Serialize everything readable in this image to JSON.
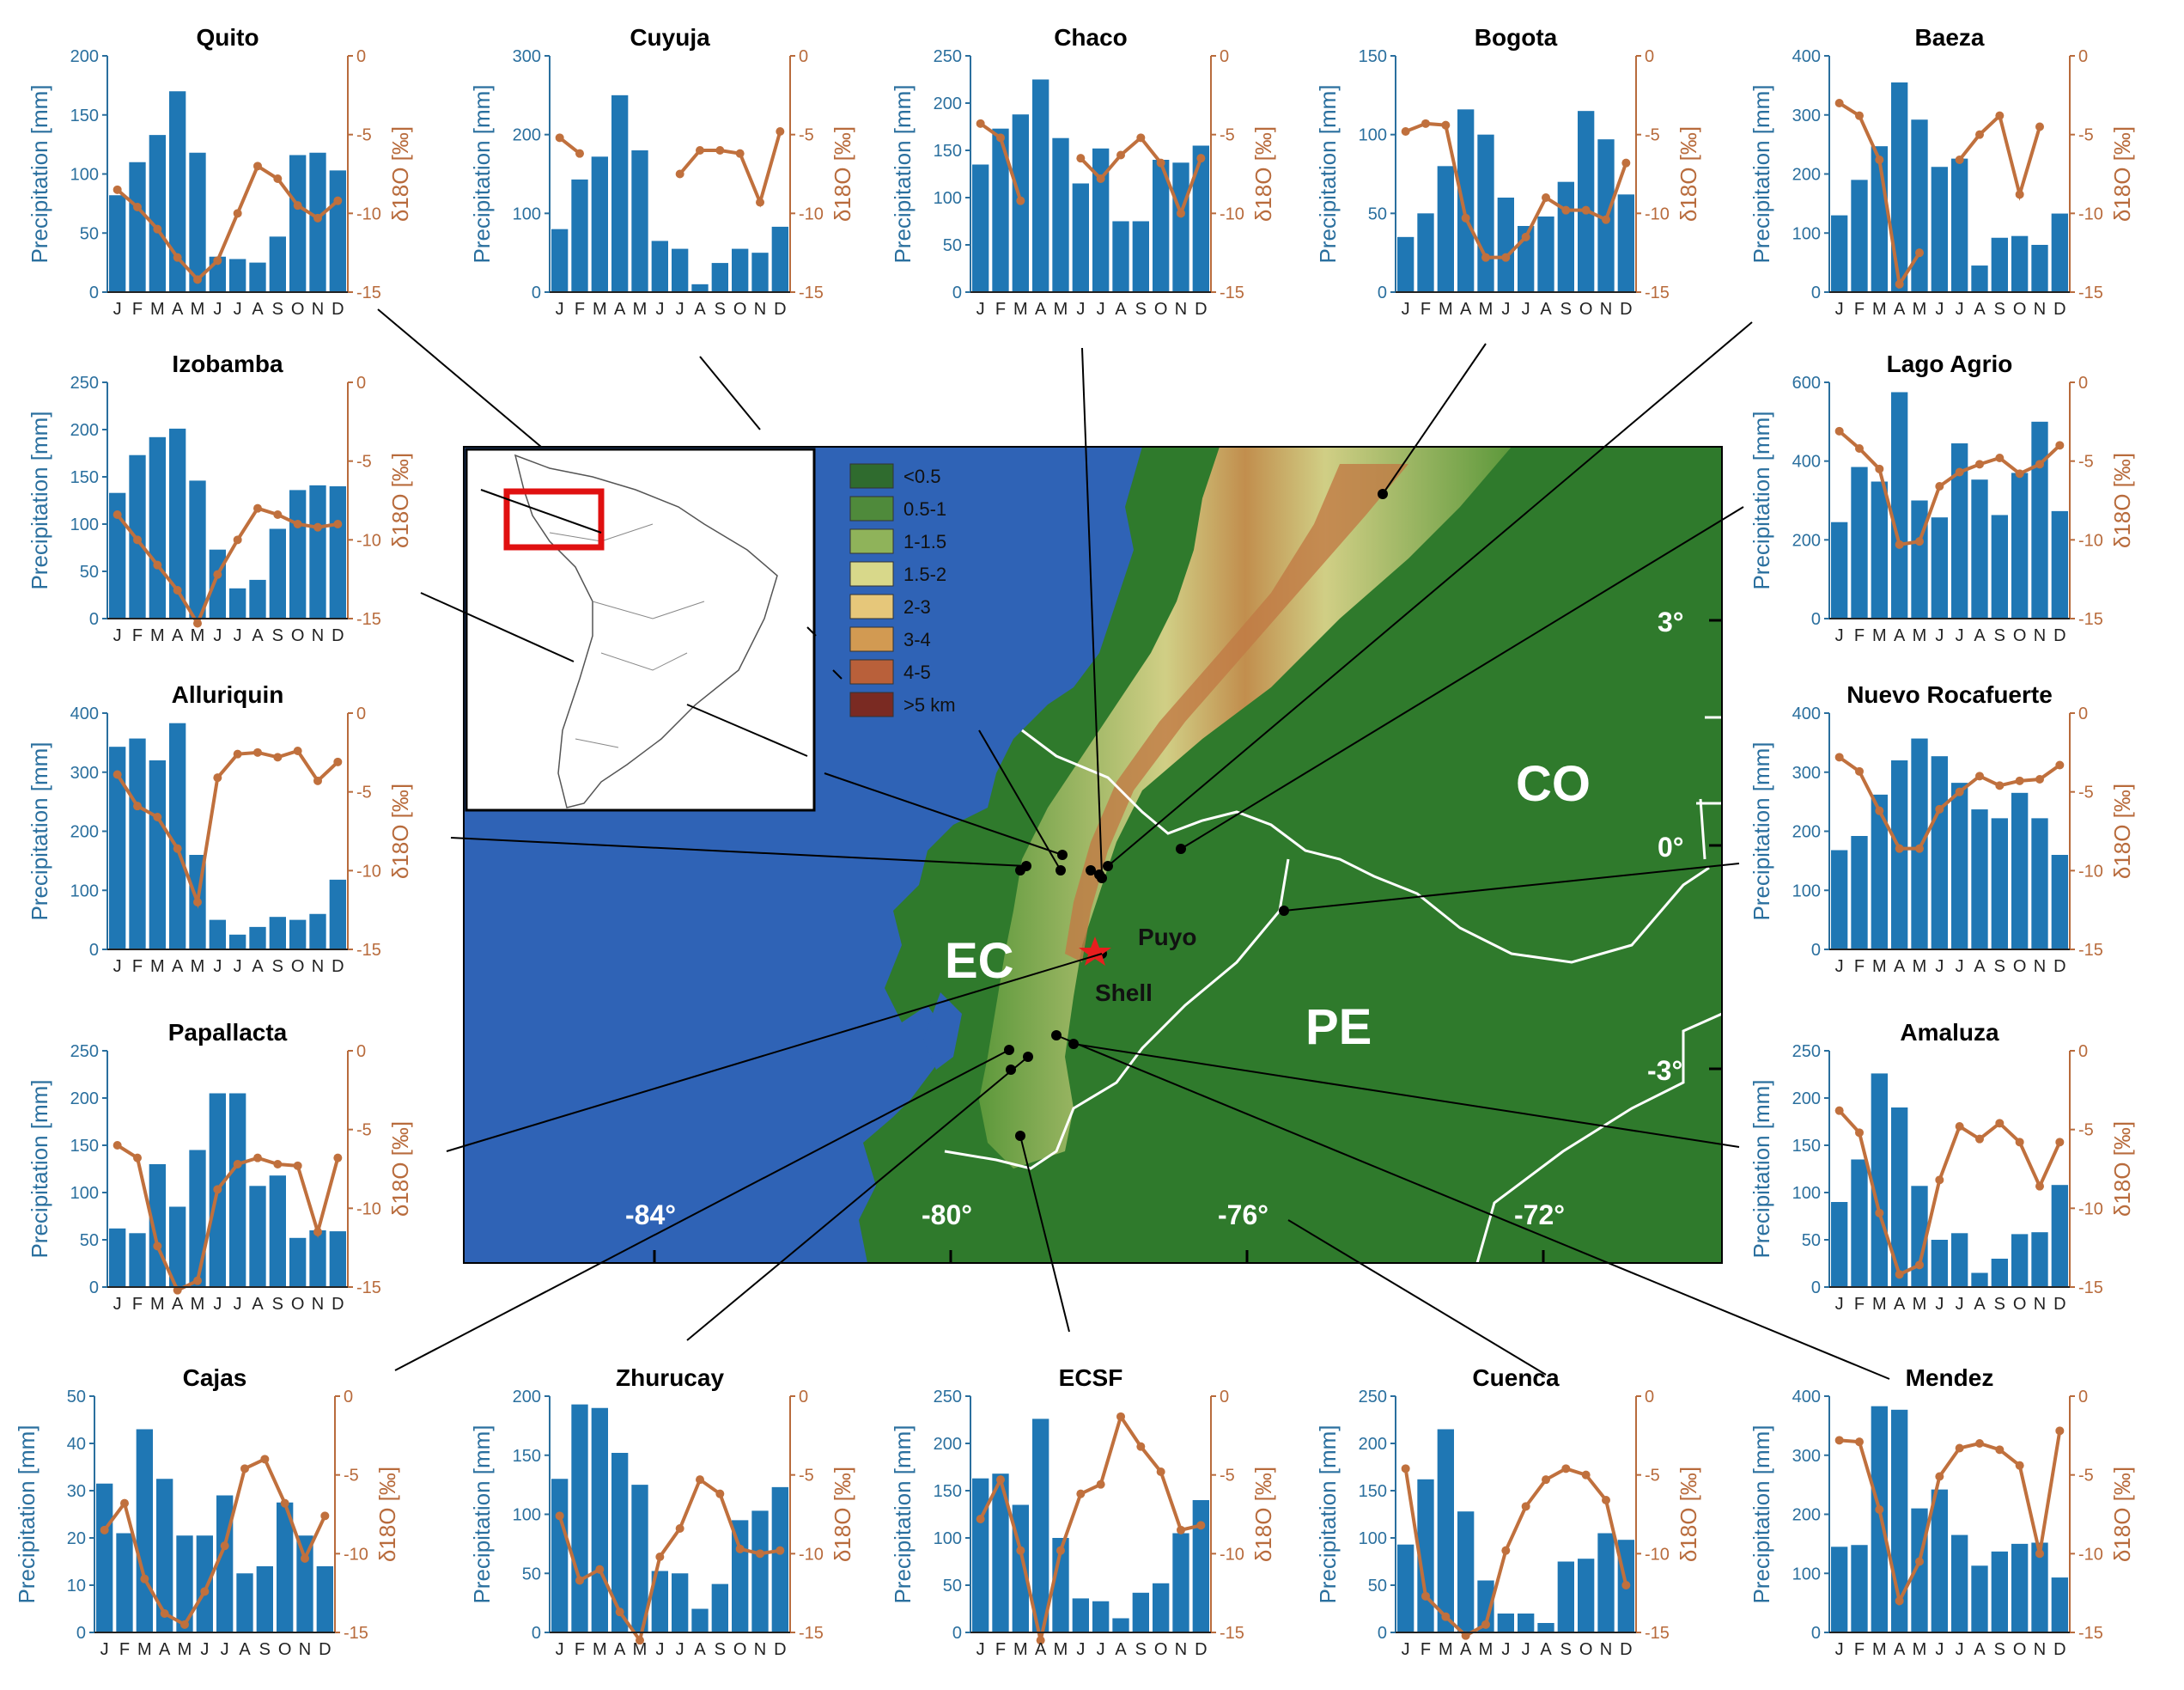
{
  "months": [
    "J",
    "F",
    "M",
    "A",
    "M",
    "J",
    "J",
    "A",
    "S",
    "O",
    "N",
    "D"
  ],
  "axis_labels": {
    "left": "Precipitation [mm]",
    "right": "δ18O [‰]"
  },
  "colors": {
    "bar": "#1f77b4",
    "line": "#c0703d",
    "ocean": "#2f63b6",
    "land_low": "#2d7a2a"
  },
  "map": {
    "country_labels": [
      "EC",
      "PE",
      "CO"
    ],
    "city_labels": [
      "Puyo",
      "Shell"
    ],
    "lon_ticks": [
      "-84°",
      "-80°",
      "-76°",
      "-72°"
    ],
    "lat_ticks": [
      "3°",
      "0°",
      "-3°"
    ],
    "legend": [
      "<0.5",
      "0.5-1",
      "1-1.5",
      "1.5-2",
      "2-3",
      "3-4",
      "4-5",
      ">5 km"
    ],
    "legend_colors": [
      "#2f6b2e",
      "#4f8a3b",
      "#8fb35a",
      "#d8d88a",
      "#e6c77a",
      "#d29a52",
      "#b9603a",
      "#7a2a22"
    ]
  },
  "chart_data": [
    {
      "type": "bar+line",
      "title": "Quito",
      "ylim": [
        0,
        200
      ],
      "yticks": [
        0,
        50,
        100,
        150,
        200
      ],
      "d18O_ticks": [
        0,
        -5,
        -10,
        -15
      ],
      "precip": [
        82,
        110,
        133,
        170,
        118,
        30,
        28,
        25,
        47,
        116,
        118,
        103
      ],
      "d18O": [
        -8.5,
        -9.6,
        -11,
        -12.8,
        -14.2,
        -13,
        -10,
        -7,
        -7.8,
        -9.5,
        -10.3,
        -9.2
      ]
    },
    {
      "type": "bar+line",
      "title": "Cuyuja",
      "ylim": [
        0,
        300
      ],
      "yticks": [
        0,
        100,
        200,
        300
      ],
      "d18O_ticks": [
        0,
        -5,
        -10,
        -15
      ],
      "precip": [
        80,
        143,
        172,
        250,
        180,
        65,
        55,
        10,
        37,
        55,
        50,
        83
      ],
      "d18O": [
        -5.2,
        -6.2,
        null,
        null,
        null,
        null,
        -7.5,
        -6,
        -6,
        -6.2,
        -9.3,
        -4.8
      ]
    },
    {
      "type": "bar+line",
      "title": "Chaco",
      "ylim": [
        0,
        250
      ],
      "yticks": [
        0,
        50,
        100,
        150,
        200,
        250
      ],
      "d18O_ticks": [
        0,
        -5,
        -10,
        -15
      ],
      "precip": [
        135,
        173,
        188,
        225,
        163,
        115,
        152,
        75,
        75,
        140,
        137,
        155
      ],
      "d18O": [
        -4.3,
        -5.2,
        -9.2,
        null,
        null,
        -6.5,
        -7.8,
        -6.3,
        -5.2,
        -6.8,
        -10,
        -6.5
      ]
    },
    {
      "type": "bar+line",
      "title": "Bogota",
      "ylim": [
        0,
        150
      ],
      "yticks": [
        0,
        50,
        100,
        150
      ],
      "d18O_ticks": [
        0,
        -5,
        -10,
        -15
      ],
      "precip": [
        35,
        50,
        80,
        116,
        100,
        60,
        42,
        48,
        70,
        115,
        97,
        62
      ],
      "d18O": [
        -4.8,
        -4.3,
        -4.4,
        -10.3,
        -12.8,
        -12.8,
        -11.5,
        -9,
        -9.8,
        -9.8,
        -10.4,
        -6.8
      ]
    },
    {
      "type": "bar+line",
      "title": "Baeza",
      "ylim": [
        0,
        400
      ],
      "yticks": [
        0,
        100,
        200,
        300,
        400
      ],
      "d18O_ticks": [
        0,
        -5,
        -10,
        -15
      ],
      "precip": [
        130,
        190,
        247,
        355,
        292,
        212,
        226,
        45,
        92,
        95,
        80,
        133
      ],
      "d18O": [
        -3,
        -3.8,
        -6.6,
        -14.5,
        -12.5,
        null,
        -6.6,
        -5,
        -3.8,
        -8.8,
        -4.5,
        null
      ]
    },
    {
      "type": "bar+line",
      "title": "Izobamba",
      "ylim": [
        0,
        250
      ],
      "yticks": [
        0,
        50,
        100,
        150,
        200,
        250
      ],
      "d18O_ticks": [
        0,
        -5,
        -10,
        -15
      ],
      "precip": [
        133,
        173,
        192,
        201,
        146,
        73,
        32,
        41,
        95,
        136,
        141,
        140
      ],
      "d18O": [
        -8.4,
        -10,
        -11.6,
        -13.2,
        -15.3,
        -12.2,
        -10,
        -8,
        -8.4,
        -9,
        -9.2,
        -9
      ]
    },
    {
      "type": "bar+line",
      "title": "Lago Agrio",
      "ylim": [
        0,
        600
      ],
      "yticks": [
        0,
        200,
        400,
        600
      ],
      "d18O_ticks": [
        0,
        -5,
        -10,
        -15
      ],
      "precip": [
        245,
        385,
        348,
        575,
        300,
        257,
        445,
        353,
        263,
        370,
        500,
        273
      ],
      "d18O": [
        -3.1,
        -4.2,
        -5.5,
        -10.3,
        -10.1,
        -6.6,
        -5.7,
        -5.2,
        -4.8,
        -5.8,
        -5.2,
        -4
      ]
    },
    {
      "type": "bar+line",
      "title": "Alluriquin",
      "ylim": [
        0,
        400
      ],
      "yticks": [
        0,
        100,
        200,
        300,
        400
      ],
      "d18O_ticks": [
        0,
        -5,
        -10,
        -15
      ],
      "precip": [
        343,
        357,
        320,
        383,
        160,
        50,
        25,
        38,
        55,
        50,
        60,
        118
      ],
      "d18O": [
        -3.9,
        -5.9,
        -6.6,
        -8.6,
        -12,
        -4.1,
        -2.6,
        -2.5,
        -2.8,
        -2.4,
        -4.3,
        -3.1
      ]
    },
    {
      "type": "bar+line",
      "title": "Nuevo Rocafuerte",
      "ylim": [
        0,
        400
      ],
      "yticks": [
        0,
        100,
        200,
        300,
        400
      ],
      "d18O_ticks": [
        0,
        -5,
        -10,
        -15
      ],
      "precip": [
        168,
        192,
        262,
        320,
        357,
        327,
        282,
        237,
        222,
        265,
        222,
        160
      ],
      "d18O": [
        -2.8,
        -3.7,
        -6.2,
        -8.6,
        -8.6,
        -6.1,
        -5,
        -4,
        -4.6,
        -4.3,
        -4.2,
        -3.3
      ]
    },
    {
      "type": "bar+line",
      "title": "Papallacta",
      "ylim": [
        0,
        250
      ],
      "yticks": [
        0,
        50,
        100,
        150,
        200,
        250
      ],
      "d18O_ticks": [
        0,
        -5,
        -10,
        -15
      ],
      "precip": [
        62,
        57,
        130,
        85,
        145,
        205,
        205,
        107,
        118,
        52,
        60,
        59
      ],
      "d18O": [
        -6,
        -6.8,
        -12.4,
        -15.2,
        -14.6,
        -8.8,
        -7.2,
        -6.8,
        -7.2,
        -7.3,
        -11.5,
        -6.8
      ]
    },
    {
      "type": "bar+line",
      "title": "Amaluza",
      "ylim": [
        0,
        250
      ],
      "yticks": [
        0,
        50,
        100,
        150,
        200,
        250
      ],
      "d18O_ticks": [
        0,
        -5,
        -10,
        -15
      ],
      "precip": [
        90,
        135,
        226,
        190,
        107,
        50,
        57,
        15,
        30,
        56,
        58,
        108
      ],
      "d18O": [
        -3.8,
        -5.2,
        -10.3,
        -14.2,
        -13.6,
        -8.2,
        -4.8,
        -5.6,
        -4.6,
        -5.8,
        -8.6,
        -5.8
      ]
    },
    {
      "type": "bar+line",
      "title": "Cajas",
      "ylim": [
        0,
        50
      ],
      "yticks": [
        0,
        10,
        20,
        30,
        40,
        50
      ],
      "d18O_ticks": [
        0,
        -5,
        -10,
        -15
      ],
      "precip": [
        31.5,
        21,
        43,
        32.5,
        20.5,
        20.5,
        29,
        12.5,
        14,
        27.5,
        20.5,
        14
      ],
      "d18O": [
        -8.5,
        -6.8,
        -11.6,
        -13.8,
        -14.5,
        -12.4,
        -9.5,
        -4.6,
        -4,
        -6.8,
        -10.3,
        -7.6
      ]
    },
    {
      "type": "bar+line",
      "title": "Zhurucay",
      "ylim": [
        0,
        200
      ],
      "yticks": [
        0,
        50,
        100,
        150,
        200
      ],
      "d18O_ticks": [
        0,
        -5,
        -10,
        -15
      ],
      "precip": [
        130,
        193,
        190,
        152,
        125,
        52,
        50,
        20,
        41,
        95,
        103,
        123
      ],
      "d18O": [
        -7.6,
        -11.7,
        -11,
        -13.7,
        -15.5,
        -10.2,
        -8.4,
        -5.3,
        -6.2,
        -9.7,
        -10,
        -9.8
      ]
    },
    {
      "type": "bar+line",
      "title": "ECSF",
      "ylim": [
        0,
        250
      ],
      "yticks": [
        0,
        50,
        100,
        150,
        200,
        250
      ],
      "d18O_ticks": [
        0,
        -5,
        -10,
        -15
      ],
      "precip": [
        163,
        168,
        135,
        226,
        100,
        36,
        33,
        15,
        42,
        52,
        105,
        140
      ],
      "d18O": [
        -7.8,
        -5.3,
        -9.8,
        -15.5,
        -9.8,
        -6.2,
        -5.6,
        -1.3,
        -3.2,
        -4.8,
        -8.5,
        -8.2
      ]
    },
    {
      "type": "bar+line",
      "title": "Cuenca",
      "ylim": [
        0,
        250
      ],
      "yticks": [
        0,
        50,
        100,
        150,
        200,
        250
      ],
      "d18O_ticks": [
        0,
        -5,
        -10,
        -15
      ],
      "precip": [
        93,
        162,
        215,
        128,
        55,
        20,
        20,
        10,
        75,
        78,
        105,
        98
      ],
      "d18O": [
        -4.6,
        -12.7,
        -14,
        -15.2,
        -14.5,
        -9.8,
        -7,
        -5.3,
        -4.6,
        -5,
        -6.6,
        -12
      ]
    },
    {
      "type": "bar+line",
      "title": "Mendez",
      "ylim": [
        0,
        400
      ],
      "yticks": [
        0,
        100,
        200,
        300,
        400
      ],
      "d18O_ticks": [
        0,
        -5,
        -10,
        -15
      ],
      "precip": [
        145,
        148,
        383,
        377,
        210,
        242,
        165,
        113,
        137,
        150,
        152,
        93
      ],
      "d18O": [
        -2.8,
        -2.9,
        -7.2,
        -13,
        -10.5,
        -5.1,
        -3.3,
        -3,
        -3.4,
        -4.4,
        -10,
        -2.2
      ]
    }
  ]
}
